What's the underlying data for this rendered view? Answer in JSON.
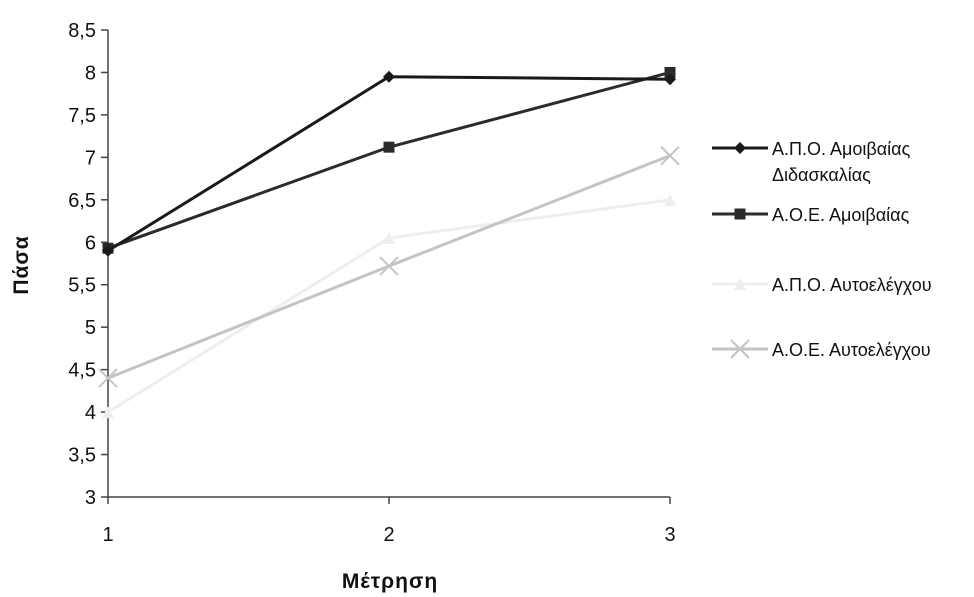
{
  "chart_data": {
    "type": "line",
    "xlabel": "Μέτρηση",
    "ylabel": "Πάσα",
    "x": [
      1,
      2,
      3
    ],
    "x_tick_labels": [
      "1",
      "2",
      "3"
    ],
    "ylim": [
      3,
      8.5
    ],
    "y_ticks": [
      3,
      3.5,
      4,
      4.5,
      5,
      5.5,
      6,
      6.5,
      7,
      7.5,
      8,
      8.5
    ],
    "y_tick_labels": [
      "3",
      "3,5",
      "4",
      "4,5",
      "5",
      "5,5",
      "6",
      "6,5",
      "7",
      "7,5",
      "8",
      "8,5"
    ],
    "grid": false,
    "legend_position": "right",
    "series": [
      {
        "name_lines": [
          "Α.Π.Ο. Αμοιβαίας",
          "Διδασκαλίας"
        ],
        "values": [
          5.9,
          7.95,
          7.92
        ],
        "color": "#1a1a1a",
        "marker": "diamond"
      },
      {
        "name_lines": [
          "Α.Ο.Ε. Αμοιβαίας"
        ],
        "values": [
          5.93,
          7.12,
          8.0
        ],
        "color": "#2b2b2b",
        "marker": "square"
      },
      {
        "name_lines": [
          "Α.Π.Ο. Αυτοελέγχου"
        ],
        "values": [
          4.0,
          6.05,
          6.5
        ],
        "color": "#eeeeee",
        "marker": "triangle"
      },
      {
        "name_lines": [
          "Α.Ο.Ε. Αυτοελέγχου"
        ],
        "values": [
          4.4,
          5.72,
          7.02
        ],
        "color": "#c4c4c4",
        "marker": "x"
      }
    ]
  }
}
